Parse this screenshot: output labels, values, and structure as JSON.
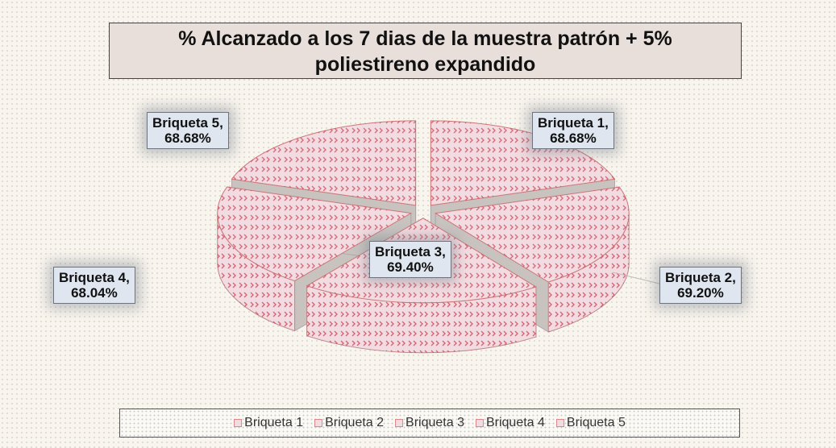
{
  "chart_data": {
    "type": "pie",
    "title": "% Alcanzado a los 7 dias de la muestra patrón + 5%\npoliestireno expandido",
    "categories": [
      "Briqueta 1",
      "Briqueta 2",
      "Briqueta 3",
      "Briqueta 4",
      "Briqueta 5"
    ],
    "values": [
      68.68,
      69.2,
      69.4,
      68.04,
      68.68
    ],
    "value_labels": [
      "Briqueta 1,\n68.68%",
      "Briqueta 2,\n69.20%",
      "Briqueta 3,\n69.40%",
      "Briqueta 4,\n68.04%",
      "Briqueta 5,\n68.68%"
    ],
    "color": "#f3dce1",
    "legend": "bottom"
  }
}
